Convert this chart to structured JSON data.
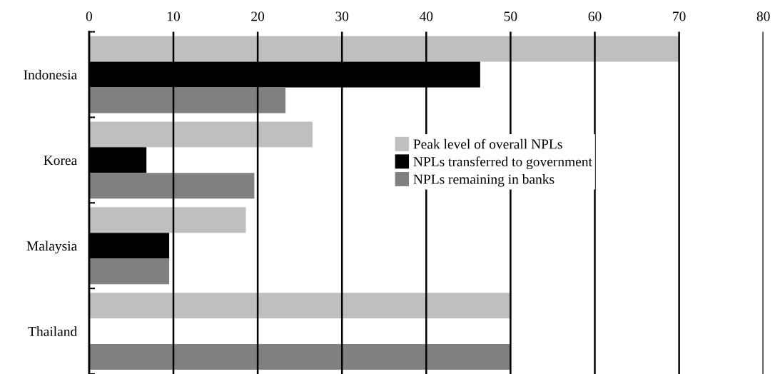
{
  "chart_data": {
    "type": "bar",
    "orientation": "horizontal",
    "categories": [
      "Indonesia",
      "Korea",
      "Malaysia",
      "Thailand"
    ],
    "series": [
      {
        "name": "Peak level of overall NPLs",
        "color": "#bfbfbf",
        "values": [
          70,
          26.5,
          18.6,
          50
        ]
      },
      {
        "name": "NPLs transferred to government",
        "color": "#000000",
        "values": [
          46.4,
          6.8,
          9.5,
          null
        ]
      },
      {
        "name": "NPLs remaining in banks",
        "color": "#808080",
        "values": [
          23.3,
          19.6,
          9.5,
          50
        ]
      }
    ],
    "xlim": [
      0,
      80
    ],
    "xticks": [
      0,
      10,
      20,
      30,
      40,
      50,
      60,
      70,
      80
    ],
    "grid": "x",
    "legend": "center"
  }
}
